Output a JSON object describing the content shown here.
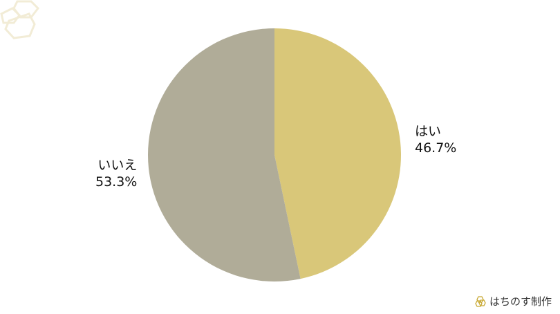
{
  "chart_data": {
    "type": "pie",
    "categories": [
      "はい",
      "いいえ"
    ],
    "values": [
      46.7,
      53.3
    ],
    "value_labels": [
      "46.7%",
      "53.3%"
    ],
    "colors": [
      "#d9c779",
      "#b0ac98"
    ],
    "start": "top",
    "direction": "clockwise"
  },
  "credit": {
    "text": "はちのす制作",
    "logo_color": "#c8a832"
  },
  "decoration": {
    "color": "#f1ead2"
  }
}
